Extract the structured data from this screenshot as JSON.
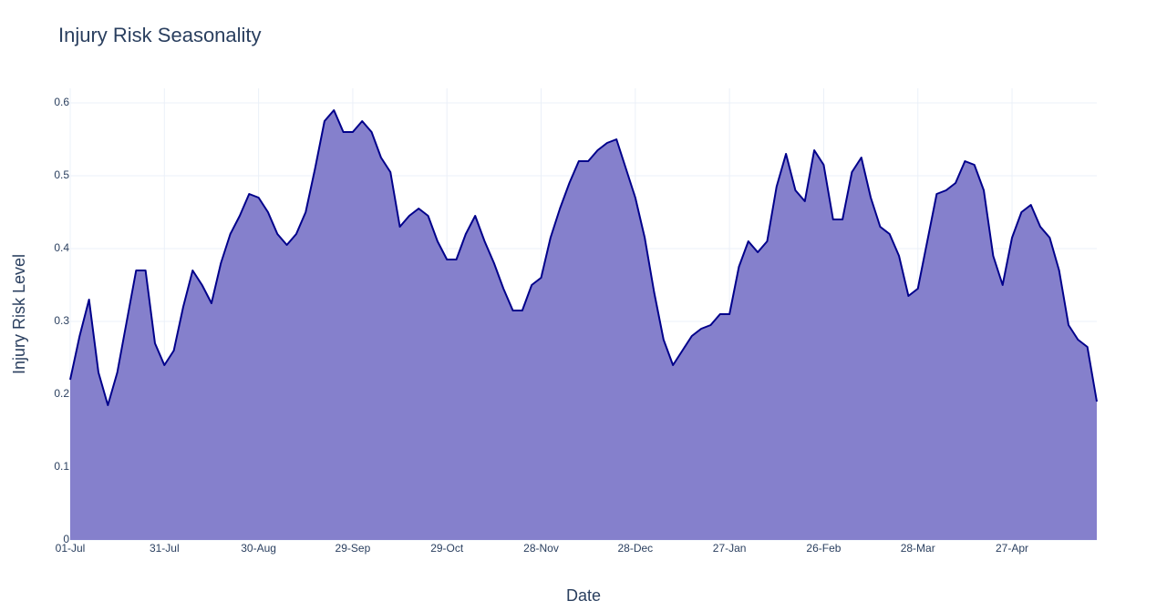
{
  "chart_data": {
    "type": "area",
    "title": "Injury Risk Seasonality",
    "x_label": "Date",
    "y_label": "Injury Risk Level",
    "x": [
      "01-Jul",
      "04-Jul",
      "07-Jul",
      "10-Jul",
      "13-Jul",
      "16-Jul",
      "19-Jul",
      "22-Jul",
      "25-Jul",
      "28-Jul",
      "31-Jul",
      "03-Aug",
      "06-Aug",
      "09-Aug",
      "12-Aug",
      "15-Aug",
      "18-Aug",
      "21-Aug",
      "24-Aug",
      "27-Aug",
      "30-Aug",
      "02-Sep",
      "05-Sep",
      "08-Sep",
      "11-Sep",
      "14-Sep",
      "17-Sep",
      "20-Sep",
      "23-Sep",
      "26-Sep",
      "29-Sep",
      "02-Oct",
      "05-Oct",
      "08-Oct",
      "11-Oct",
      "14-Oct",
      "17-Oct",
      "20-Oct",
      "23-Oct",
      "26-Oct",
      "29-Oct",
      "01-Nov",
      "04-Nov",
      "07-Nov",
      "10-Nov",
      "13-Nov",
      "16-Nov",
      "19-Nov",
      "22-Nov",
      "25-Nov",
      "28-Nov",
      "01-Dec",
      "04-Dec",
      "07-Dec",
      "10-Dec",
      "13-Dec",
      "16-Dec",
      "19-Dec",
      "22-Dec",
      "25-Dec",
      "28-Dec",
      "31-Dec",
      "03-Jan",
      "06-Jan",
      "09-Jan",
      "12-Jan",
      "15-Jan",
      "18-Jan",
      "21-Jan",
      "24-Jan",
      "27-Jan",
      "30-Jan",
      "02-Feb",
      "05-Feb",
      "08-Feb",
      "11-Feb",
      "14-Feb",
      "17-Feb",
      "20-Feb",
      "23-Feb",
      "26-Feb",
      "01-Mar",
      "04-Mar",
      "07-Mar",
      "10-Mar",
      "13-Mar",
      "16-Mar",
      "19-Mar",
      "22-Mar",
      "25-Mar",
      "28-Mar",
      "31-Mar",
      "03-Apr",
      "06-Apr",
      "09-Apr",
      "12-Apr",
      "15-Apr",
      "18-Apr",
      "21-Apr",
      "24-Apr",
      "27-Apr",
      "30-Apr",
      "03-May",
      "06-May",
      "09-May",
      "12-May",
      "15-May",
      "18-May",
      "21-May",
      "24-May"
    ],
    "values": [
      0.22,
      0.28,
      0.33,
      0.23,
      0.185,
      0.23,
      0.3,
      0.37,
      0.37,
      0.27,
      0.24,
      0.26,
      0.32,
      0.37,
      0.35,
      0.325,
      0.38,
      0.42,
      0.445,
      0.475,
      0.47,
      0.45,
      0.42,
      0.405,
      0.42,
      0.45,
      0.51,
      0.575,
      0.59,
      0.56,
      0.56,
      0.575,
      0.56,
      0.525,
      0.505,
      0.43,
      0.445,
      0.455,
      0.445,
      0.41,
      0.385,
      0.385,
      0.42,
      0.445,
      0.41,
      0.38,
      0.345,
      0.315,
      0.315,
      0.35,
      0.36,
      0.415,
      0.455,
      0.49,
      0.52,
      0.52,
      0.535,
      0.545,
      0.55,
      0.51,
      0.47,
      0.415,
      0.34,
      0.275,
      0.24,
      0.26,
      0.28,
      0.29,
      0.295,
      0.31,
      0.31,
      0.375,
      0.41,
      0.395,
      0.41,
      0.485,
      0.53,
      0.48,
      0.465,
      0.535,
      0.515,
      0.44,
      0.44,
      0.505,
      0.525,
      0.47,
      0.43,
      0.42,
      0.39,
      0.335,
      0.345,
      0.41,
      0.475,
      0.48,
      0.49,
      0.52,
      0.515,
      0.48,
      0.39,
      0.35,
      0.415,
      0.45,
      0.46,
      0.43,
      0.415,
      0.37,
      0.295,
      0.275,
      0.265,
      0.19
    ],
    "color": "#00008b",
    "fill_color": "#8580cc",
    "ylim": [
      0,
      0.62
    ],
    "yticks": [
      0,
      0.1,
      0.2,
      0.3,
      0.4,
      0.5,
      0.6
    ],
    "xticks": [
      "01-Jul",
      "31-Jul",
      "30-Aug",
      "29-Sep",
      "29-Oct",
      "28-Nov",
      "28-Dec",
      "27-Jan",
      "26-Feb",
      "28-Mar",
      "27-Apr"
    ],
    "grid": true
  }
}
